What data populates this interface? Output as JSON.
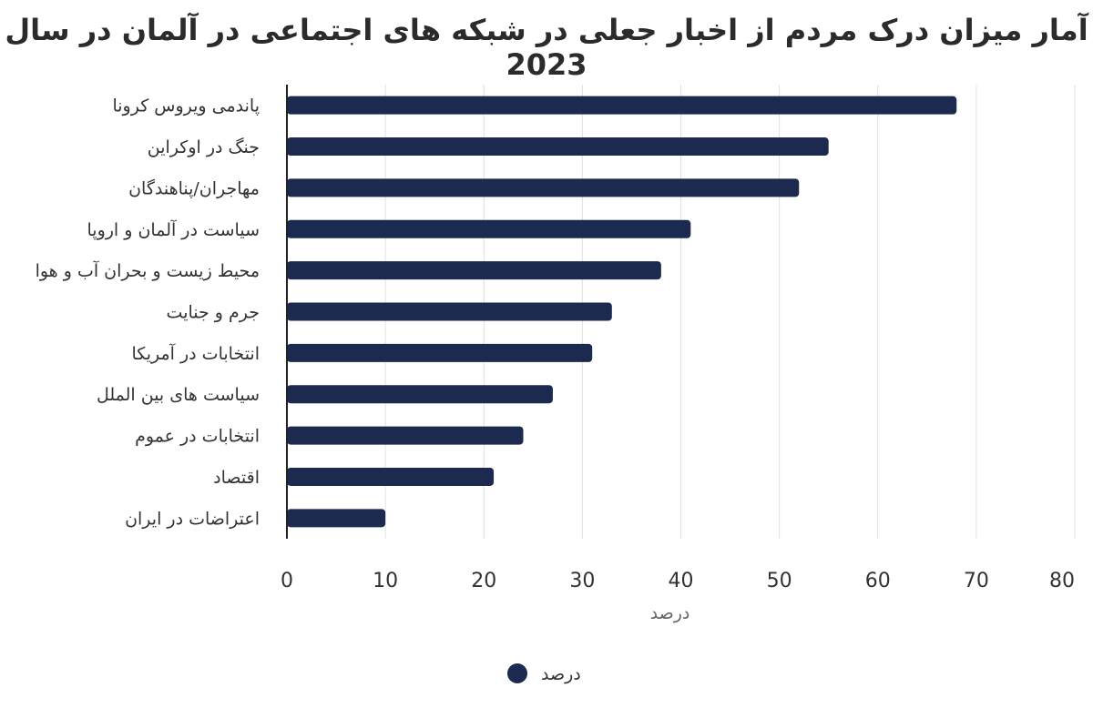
{
  "chart_data": {
    "type": "bar",
    "orientation": "horizontal",
    "title": "آمار میزان درک مردم از اخبار جعلی در شبکه های اجتماعی در آلمان در سال 2023",
    "categories": [
      "پاندمی ویروس کرونا",
      "جنگ در اوکراین",
      "مهاجران/پناهندگان",
      "سیاست در آلمان و اروپا",
      "محیط زیست و بحران آب و هوا",
      "جرم و جنایت",
      "انتخابات در آمریکا",
      "سیاست های بین الملل",
      "انتخابات در عموم",
      "اقتصاد",
      "اعتراضات در ایران"
    ],
    "series": [
      {
        "name": "درصد",
        "color": "#1b2a4e",
        "values": [
          68,
          55,
          52,
          41,
          38,
          33,
          31,
          27,
          24,
          21,
          10
        ]
      }
    ],
    "xlabel": "درصد",
    "xlim": [
      0,
      80
    ],
    "xticks": [
      "0",
      "10",
      "20",
      "30",
      "40",
      "50",
      "60",
      "70",
      "80"
    ],
    "grid": "vertical",
    "legend_position": "bottom"
  }
}
